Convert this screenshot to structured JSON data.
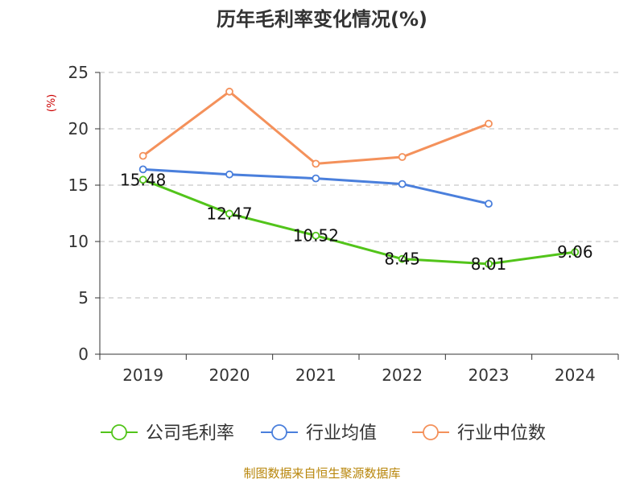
{
  "chart_data": {
    "type": "line",
    "title": "历年毛利率变化情况(%)",
    "ylabel": "(%)",
    "xlabel": "",
    "categories": [
      "2019",
      "2020",
      "2021",
      "2022",
      "2023",
      "2024"
    ],
    "ylim": [
      0,
      25
    ],
    "yticks": [
      "0",
      "5",
      "10",
      "15",
      "20",
      "25"
    ],
    "grid": true,
    "legend_position": "bottom",
    "series": [
      {
        "name": "公司毛利率",
        "color": "#52c41a",
        "values": [
          15.48,
          12.47,
          10.52,
          8.45,
          8.01,
          9.06
        ],
        "labels": [
          "15.48",
          "12.47",
          "10.52",
          "8.45",
          "8.01",
          "9.06"
        ]
      },
      {
        "name": "行业均值",
        "color": "#4a7fdc",
        "values": [
          16.4,
          15.95,
          15.6,
          15.1,
          13.35,
          null
        ]
      },
      {
        "name": "行业中位数",
        "color": "#f4915b",
        "values": [
          17.6,
          23.3,
          16.9,
          17.5,
          20.45,
          null
        ]
      }
    ],
    "source": "制图数据来自恒生聚源数据库"
  }
}
